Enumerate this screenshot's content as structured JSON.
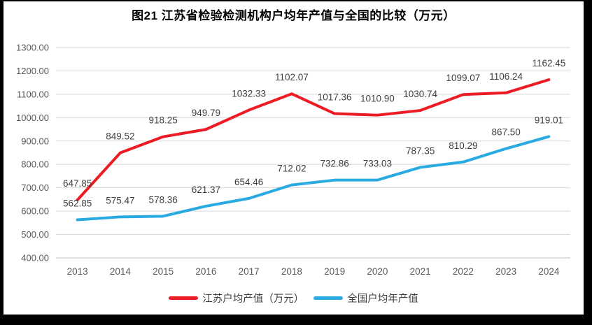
{
  "chart_data": {
    "type": "line",
    "title": "图21  江苏省检验检测机构户均年产值与全国的比较（万元）",
    "categories": [
      "2013",
      "2014",
      "2015",
      "2016",
      "2017",
      "2018",
      "2019",
      "2020",
      "2021",
      "2022",
      "2023",
      "2024"
    ],
    "series": [
      {
        "name": "江苏户均产值（万元）",
        "color": "#ED1C24",
        "values": [
          647.85,
          849.52,
          918.25,
          949.79,
          1032.33,
          1102.07,
          1017.36,
          1010.9,
          1030.74,
          1099.07,
          1106.24,
          1162.45
        ]
      },
      {
        "name": "全国户均年产值",
        "color": "#29ABE2",
        "values": [
          562.85,
          575.47,
          578.36,
          621.37,
          654.46,
          712.02,
          732.86,
          733.03,
          787.35,
          810.29,
          867.5,
          919.01
        ]
      }
    ],
    "ylim": [
      400,
      1300
    ],
    "ytick_step": 100,
    "yticks": [
      "1300.00",
      "1200.00",
      "1100.00",
      "1000.00",
      "900.00",
      "800.00",
      "700.00",
      "600.00",
      "500.00",
      "400.00"
    ],
    "grid": true,
    "data_labels": true,
    "legend_position": "bottom"
  },
  "colors": {
    "frame_bg": "#000000",
    "page_bg": "#FFFFFF",
    "grid": "#D9D9D9",
    "axis_line": "#BFBFBF",
    "tick_text": "#595959",
    "data_label_text": "#404040",
    "title_text": "#000000"
  }
}
